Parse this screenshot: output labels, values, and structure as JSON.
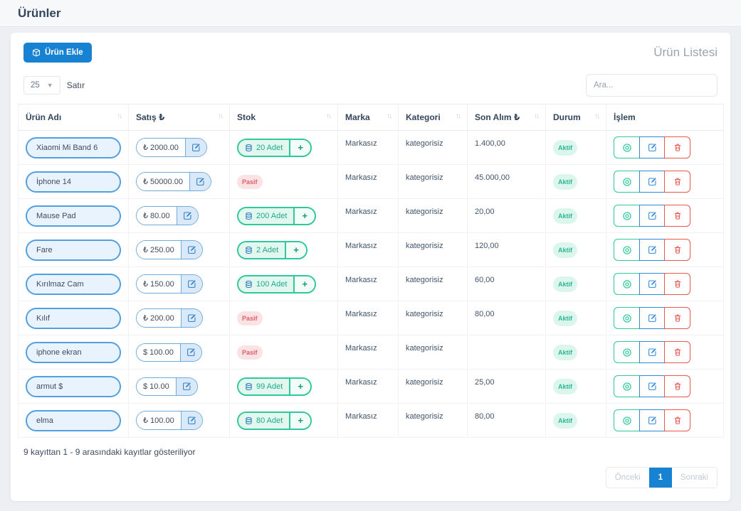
{
  "page_title": "Ürünler",
  "toolbar": {
    "add_button_label": "Ürün Ekle",
    "list_title": "Ürün Listesi"
  },
  "controls": {
    "rows_per_page": "25",
    "rows_label": "Satır",
    "search_placeholder": "Ara..."
  },
  "table": {
    "columns": [
      {
        "key": "urun-adi",
        "label": "Ürün Adı",
        "sortable": true
      },
      {
        "key": "satis",
        "label": "Satış ₺",
        "sortable": true
      },
      {
        "key": "stok",
        "label": "Stok",
        "sortable": true
      },
      {
        "key": "marka",
        "label": "Marka",
        "sortable": true
      },
      {
        "key": "kategori",
        "label": "Kategori",
        "sortable": true
      },
      {
        "key": "son-alim",
        "label": "Son Alım ₺",
        "sortable": true
      },
      {
        "key": "durum",
        "label": "Durum",
        "sortable": true
      },
      {
        "key": "islem",
        "label": "İşlem",
        "sortable": false
      }
    ],
    "rows": [
      {
        "name": "Xiaomi Mi Band 6",
        "price": "₺ 2000.00",
        "stock": "20 Adet",
        "brand": "Markasız",
        "category": "kategorisiz",
        "last_purchase": "1.400,00",
        "status": "Aktif"
      },
      {
        "name": "İphone 14",
        "price": "₺ 50000.00",
        "stock": "Pasif",
        "brand": "Markasız",
        "category": "kategorisiz",
        "last_purchase": "45.000,00",
        "status": "Aktif"
      },
      {
        "name": "Mause Pad",
        "price": "₺ 80.00",
        "stock": "200 Adet",
        "brand": "Markasız",
        "category": "kategorisiz",
        "last_purchase": "20,00",
        "status": "Aktif"
      },
      {
        "name": "Fare",
        "price": "₺ 250.00",
        "stock": "2 Adet",
        "brand": "Markasız",
        "category": "kategorisiz",
        "last_purchase": "120,00",
        "status": "Aktif"
      },
      {
        "name": "Kırılmaz Cam",
        "price": "₺ 150.00",
        "stock": "100 Adet",
        "brand": "Markasız",
        "category": "kategorisiz",
        "last_purchase": "60,00",
        "status": "Aktif"
      },
      {
        "name": "Kılıf",
        "price": "₺ 200.00",
        "stock": "Pasif",
        "brand": "Markasız",
        "category": "kategorisiz",
        "last_purchase": "80,00",
        "status": "Aktif"
      },
      {
        "name": "iphone ekran",
        "price": "$ 100.00",
        "stock": "Pasif",
        "brand": "Markasız",
        "category": "kategorisiz",
        "last_purchase": "",
        "status": "Aktif"
      },
      {
        "name": "armut $",
        "price": "$ 10.00",
        "stock": "99 Adet",
        "brand": "Markasız",
        "category": "kategorisiz",
        "last_purchase": "25,00",
        "status": "Aktif"
      },
      {
        "name": "elma",
        "price": "₺ 100.00",
        "stock": "80 Adet",
        "brand": "Markasız",
        "category": "kategorisiz",
        "last_purchase": "80,00",
        "status": "Aktif"
      }
    ]
  },
  "icons": {
    "sort_icon": "↑↓",
    "plus_icon": "+",
    "chevron_down_icon": "▼"
  },
  "footer": {
    "info": "9 kayıttan 1 - 9 arasındaki kayıtlar gösteriliyor",
    "pagination": {
      "prev_label": "Önceki",
      "current_page": "1",
      "next_label": "Sonraki"
    }
  },
  "colors": {
    "primary": "#1781d2",
    "teal": "#2fc79c",
    "red": "#e8564f",
    "pill_blue_border": "#54a0de",
    "pill_blue_bg": "#e9f3fd",
    "badge_active_bg": "#ddf6ec",
    "badge_active_text": "#2ab795",
    "badge_pasif_bg": "#fbe3e5",
    "badge_pasif_text": "#e2606b"
  }
}
